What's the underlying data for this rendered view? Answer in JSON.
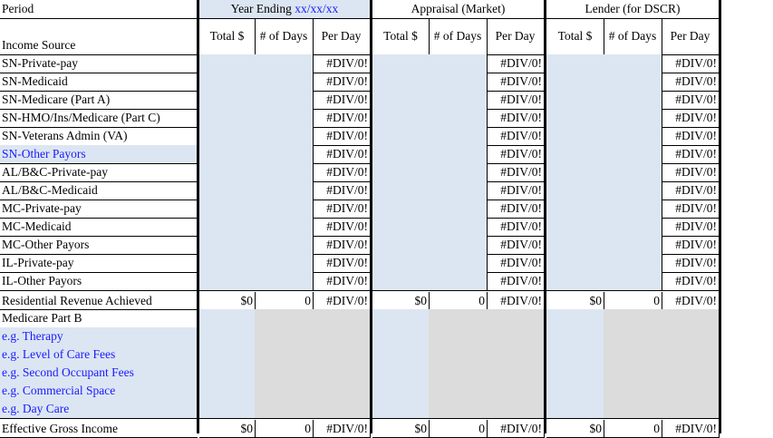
{
  "header": {
    "period_label": "Period",
    "income_source_label": "Income Source",
    "groups": [
      {
        "title": "Year Ending ",
        "title_suffix": "xx/xx/xx"
      },
      {
        "title": "Appraisal (Market)"
      },
      {
        "title": "Lender (for DSCR)"
      }
    ],
    "subcols": [
      "Total $",
      "# of Days",
      "Per Day"
    ]
  },
  "rows": [
    {
      "label": "SN-Private-pay",
      "per_day": "#DIV/0!"
    },
    {
      "label": "SN-Medicaid",
      "per_day": "#DIV/0!"
    },
    {
      "label": "SN-Medicare (Part A)",
      "per_day": "#DIV/0!"
    },
    {
      "label": "SN-HMO/Ins/Medicare (Part C)",
      "per_day": "#DIV/0!"
    },
    {
      "label": "SN-Veterans Admin (VA)",
      "per_day": "#DIV/0!"
    },
    {
      "label": "SN-Other Payors",
      "per_day": "#DIV/0!",
      "editable_label": true
    },
    {
      "label": "AL/B&C-Private-pay",
      "per_day": "#DIV/0!"
    },
    {
      "label": "AL/B&C-Medicaid",
      "per_day": "#DIV/0!"
    },
    {
      "label": "MC-Private-pay",
      "per_day": "#DIV/0!"
    },
    {
      "label": "MC-Medicaid",
      "per_day": "#DIV/0!"
    },
    {
      "label": "MC-Other Payors",
      "per_day": "#DIV/0!"
    },
    {
      "label": "IL-Private-pay",
      "per_day": "#DIV/0!"
    },
    {
      "label": "IL-Other Payors",
      "per_day": "#DIV/0!"
    }
  ],
  "residential": {
    "label": "Residential Revenue Achieved",
    "total": "$0",
    "days": "0",
    "per_day": "#DIV/0!"
  },
  "other_income": [
    {
      "label": "Medicare Part B"
    },
    {
      "label": "e.g. Therapy",
      "editable_label": true
    },
    {
      "label": "e.g. Level of Care Fees",
      "editable_label": true
    },
    {
      "label": "e.g. Second Occupant Fees",
      "editable_label": true
    },
    {
      "label": "e.g. Commercial Space",
      "editable_label": true
    },
    {
      "label": "e.g. Day Care",
      "editable_label": true
    }
  ],
  "egi": {
    "label": "Effective Gross Income",
    "total": "$0",
    "days": "0",
    "per_day": "#DIV/0!"
  },
  "colors": {
    "input_fill": "#dce6f2",
    "blocked_fill": "#dcdcdc",
    "placeholder_text": "#1a1aff"
  }
}
